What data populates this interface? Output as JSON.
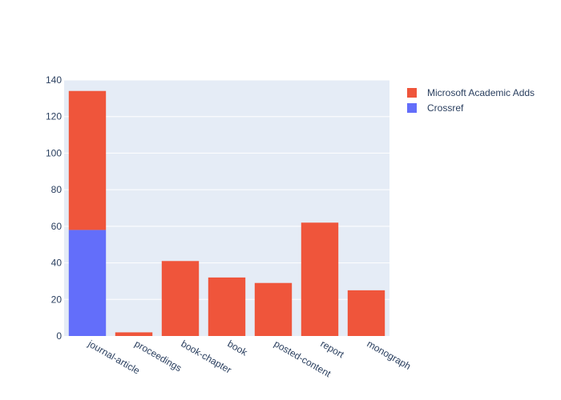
{
  "chart_data": {
    "type": "bar",
    "barmode": "stack",
    "categories": [
      "journal-article",
      "proceedings",
      "book-chapter",
      "book",
      "posted-content",
      "report",
      "monograph"
    ],
    "series": [
      {
        "name": "Crossref",
        "values": [
          58,
          0,
          0,
          0,
          0,
          0,
          0
        ],
        "color": "#636efa"
      },
      {
        "name": "Microsoft Academic Adds",
        "values": [
          76,
          2,
          41,
          32,
          29,
          62,
          25
        ],
        "color": "#ef553b"
      }
    ],
    "ylim": [
      0,
      140
    ],
    "yticks": [
      0,
      20,
      40,
      60,
      80,
      100,
      120,
      140
    ],
    "grid": true,
    "legend_placement": "top-right",
    "legend_order": [
      "Microsoft Academic Adds",
      "Crossref"
    ],
    "plot_background": "#e5ecf6",
    "title": "",
    "xlabel": "",
    "ylabel": ""
  }
}
